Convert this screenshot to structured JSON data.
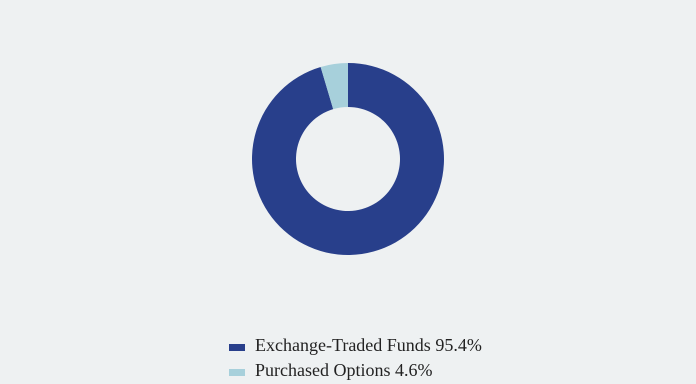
{
  "chart_data": {
    "type": "donut",
    "categories": [
      "Exchange-Traded Funds",
      "Purchased Options"
    ],
    "values": [
      95.4,
      4.6
    ],
    "value_labels": [
      "95.4%",
      "4.6%"
    ],
    "colors": [
      "#283f8b",
      "#a7d0db"
    ]
  }
}
